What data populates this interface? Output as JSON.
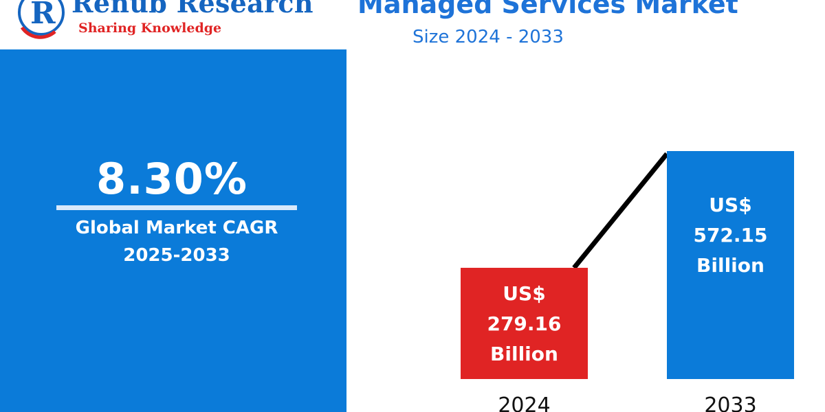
{
  "header": {
    "brand_name": "Renub Research",
    "brand_tagline": "Sharing Knowledge",
    "title": "Managed Services Market",
    "subtitle": "Size 2024 - 2033"
  },
  "cagr": {
    "value": "8.30%",
    "label_line1": "Global Market CAGR",
    "label_line2": "2025-2033"
  },
  "colors": {
    "brand_blue": "#1565c0",
    "title_blue": "#1e73d8",
    "panel_blue": "#0b7bd9",
    "bar_red": "#e02424",
    "bar_blue": "#0b7bd9",
    "tagline_red": "#e02424"
  },
  "chart_data": {
    "type": "bar",
    "title": "Managed Services Market",
    "subtitle": "Size 2024 - 2033",
    "categories": [
      "2024",
      "2033"
    ],
    "values": [
      279.16,
      572.15
    ],
    "unit": "US$ Billion",
    "data_labels": [
      [
        "US$",
        "279.16",
        "Billion"
      ],
      [
        "US$",
        "572.15",
        "Billion"
      ]
    ],
    "bar_colors": [
      "#e02424",
      "#0b7bd9"
    ],
    "trend_line": true,
    "grid": false,
    "legend": "none"
  }
}
